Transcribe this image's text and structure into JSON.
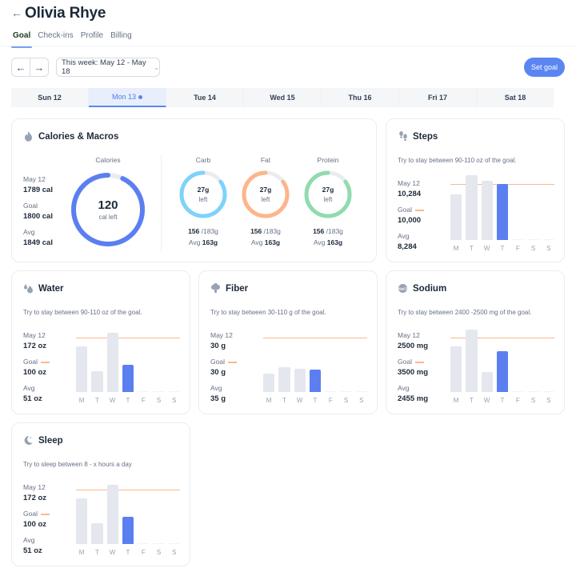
{
  "header": {
    "title": "Olivia Rhye",
    "back_icon": "arrow-left-icon"
  },
  "tabs": [
    {
      "label": "Goal",
      "active": true
    },
    {
      "label": "Check-ins",
      "active": false
    },
    {
      "label": "Profile",
      "active": false
    },
    {
      "label": "Billing",
      "active": false
    }
  ],
  "controls": {
    "prev_icon": "arrow-left-icon",
    "next_icon": "arrow-right-icon",
    "week_label": "This week: May 12 - May 18",
    "set_goal_label": "Set goal"
  },
  "days": [
    {
      "label": "Sun 12",
      "active": false
    },
    {
      "label": "Mon 13",
      "active": true,
      "dot": true
    },
    {
      "label": "Tue 14",
      "active": false
    },
    {
      "label": "Wed 15",
      "active": false
    },
    {
      "label": "Thu 16",
      "active": false
    },
    {
      "label": "Fri 17",
      "active": false
    },
    {
      "label": "Sat 18",
      "active": false
    }
  ],
  "calories": {
    "title": "Calories & Macros",
    "icon": "flame-icon",
    "stats": [
      {
        "label": "May 12",
        "value": "1789 cal"
      },
      {
        "label": "Goal",
        "value": "1800 cal"
      },
      {
        "label": "Avg",
        "value": "1849 cal"
      }
    ],
    "ring": {
      "label": "Calories",
      "value": "120",
      "sub": "cal left",
      "color": "#5b7ff0",
      "percent": 93
    },
    "macros": [
      {
        "label": "Carb",
        "value": "27g",
        "sub": "left",
        "current": "156",
        "total": "/183g",
        "avg_label": "Avg",
        "avg": "163g",
        "color": "#7dd3fc",
        "percent": 85
      },
      {
        "label": "Fat",
        "value": "27g",
        "sub": "left",
        "current": "156",
        "total": "/183g",
        "avg_label": "Avg",
        "avg": "163g",
        "color": "#fdb58a",
        "percent": 85
      },
      {
        "label": "Protein",
        "value": "27g",
        "sub": "left",
        "current": "156",
        "total": "/183g",
        "avg_label": "Avg",
        "avg": "163g",
        "color": "#8fdcae",
        "percent": 85
      }
    ]
  },
  "metric_cards": {
    "steps": {
      "title": "Steps",
      "icon": "footsteps-icon",
      "subtitle": "Try to stay between 90-110 oz of the goal.",
      "stats": [
        {
          "label": "May 12",
          "value": "10,284"
        },
        {
          "label": "Goal",
          "value": "10,000"
        },
        {
          "label": "Avg",
          "value": "8,284"
        }
      ],
      "goal_pct": 74,
      "days": [
        "M",
        "T",
        "W",
        "T",
        "F",
        "S",
        "S"
      ],
      "bars": [
        60,
        85,
        78,
        74,
        0,
        0,
        0
      ],
      "current_index": 3
    },
    "water": {
      "title": "Water",
      "icon": "water-drops-icon",
      "subtitle": "Try to stay between 90-110 oz of the goal.",
      "stats": [
        {
          "label": "May 12",
          "value": "172 oz"
        },
        {
          "label": "Goal",
          "value": "100 oz"
        },
        {
          "label": "Avg",
          "value": "51 oz"
        }
      ],
      "goal_pct": 72,
      "days": [
        "M",
        "T",
        "W",
        "T",
        "F",
        "S",
        "S"
      ],
      "bars": [
        60,
        27,
        78,
        36,
        0,
        0,
        0
      ],
      "current_index": 3
    },
    "fiber": {
      "title": "Fiber",
      "icon": "broccoli-icon",
      "subtitle": "Try to stay between 30-110 g of the goal.",
      "stats": [
        {
          "label": "May 12",
          "value": "30 g"
        },
        {
          "label": "Goal",
          "value": "30 g"
        },
        {
          "label": "Avg",
          "value": "35 g"
        }
      ],
      "goal_pct": 72,
      "days": [
        "M",
        "T",
        "W",
        "T",
        "F",
        "S",
        "S"
      ],
      "bars": [
        24,
        33,
        31,
        30,
        0,
        0,
        0
      ],
      "current_index": 3
    },
    "sodium": {
      "title": "Sodium",
      "icon": "salt-icon",
      "subtitle": "Try to stay between 2400 -2500 mg of the goal.",
      "stats": [
        {
          "label": "May 12",
          "value": "2500 mg"
        },
        {
          "label": "Goal",
          "value": "3500 mg"
        },
        {
          "label": "Avg",
          "value": "2455 mg"
        }
      ],
      "goal_pct": 72,
      "days": [
        "M",
        "T",
        "W",
        "T",
        "F",
        "S",
        "S"
      ],
      "bars": [
        60,
        82,
        26,
        54,
        0,
        0,
        0
      ],
      "current_index": 3
    },
    "sleep": {
      "title": "Sleep",
      "icon": "moon-icon",
      "subtitle": "Try to sleep between 8 - x hours a day",
      "stats": [
        {
          "label": "May 12",
          "value": "172 oz"
        },
        {
          "label": "Goal",
          "value": "100 oz"
        },
        {
          "label": "Avg",
          "value": "51 oz"
        }
      ],
      "goal_pct": 72,
      "days": [
        "M",
        "T",
        "W",
        "T",
        "F",
        "S",
        "S"
      ],
      "bars": [
        60,
        27,
        78,
        36,
        0,
        0,
        0
      ],
      "current_index": 3
    }
  },
  "colors": {
    "accent": "#5b86f2",
    "bar_current": "#5b7ff0",
    "bar_default": "#e4e7ee",
    "goal_line": "#f9b990"
  }
}
